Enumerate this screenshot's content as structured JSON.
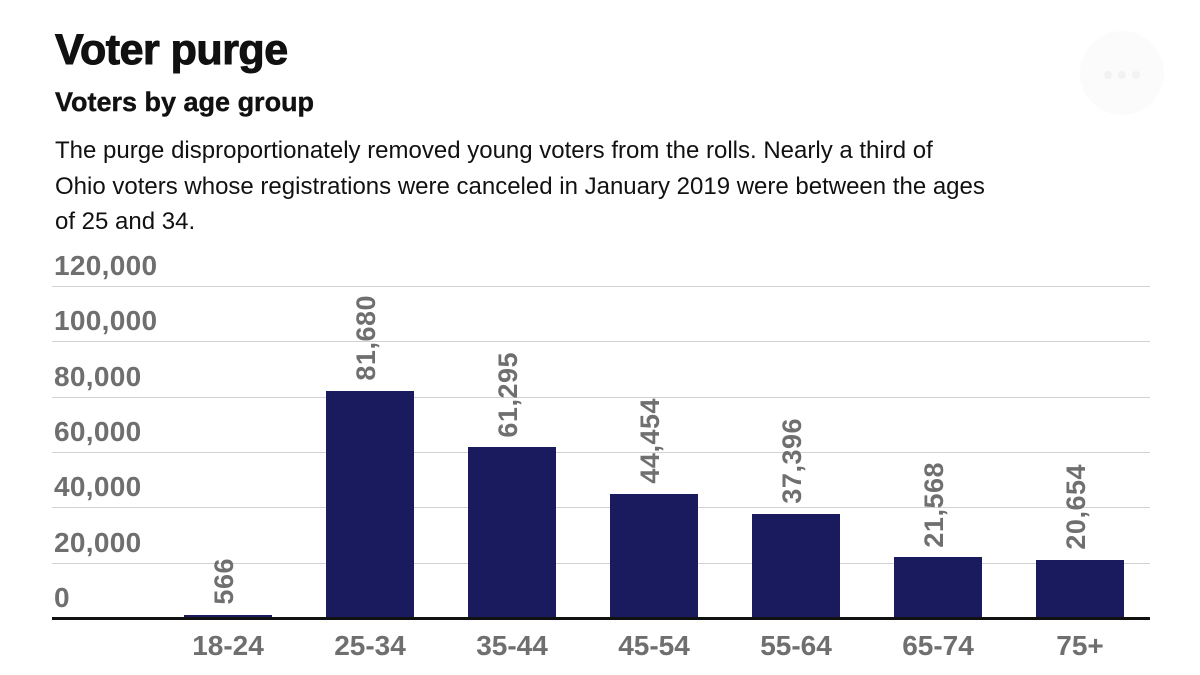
{
  "header": {
    "title": "Voter purge",
    "subtitle": "Voters by age group",
    "description": "The purge disproportionately removed young voters from the rolls. Nearly a third of Ohio voters whose registrations were canceled in January 2019 were between the ages of 25 and 34.",
    "description_lines": [
      "The purge disproportionately removed young voters from the rolls. Nearly a third of",
      "Ohio voters whose registrations were canceled in January 2019 were between the ages",
      "of 25 and 34."
    ]
  },
  "chart_data": {
    "type": "bar",
    "title": "Voter purge",
    "subtitle": "Voters by age group",
    "categories": [
      "18-24",
      "25-34",
      "35-44",
      "45-54",
      "55-64",
      "65-74",
      "75+"
    ],
    "values": [
      566,
      81680,
      61295,
      44454,
      37396,
      21568,
      20654
    ],
    "value_labels": [
      "566",
      "81,680",
      "61,295",
      "44,454",
      "37,396",
      "21,568",
      "20,654"
    ],
    "yticks": [
      0,
      20000,
      40000,
      60000,
      80000,
      100000,
      120000
    ],
    "ytick_labels": [
      "0",
      "20,000",
      "40,000",
      "60,000",
      "80,000",
      "100,000",
      "120,000"
    ],
    "ylim": [
      0,
      120000
    ],
    "xlabel": "",
    "ylabel": "",
    "grid": "horizontal",
    "legend": "none",
    "value_label_rotation": 90,
    "colors": {
      "bar": "#191b5e",
      "axis_text": "#6f6f6f",
      "gridline": "#d2d2d2",
      "axis_line": "#111111",
      "title_text": "#111111"
    }
  }
}
